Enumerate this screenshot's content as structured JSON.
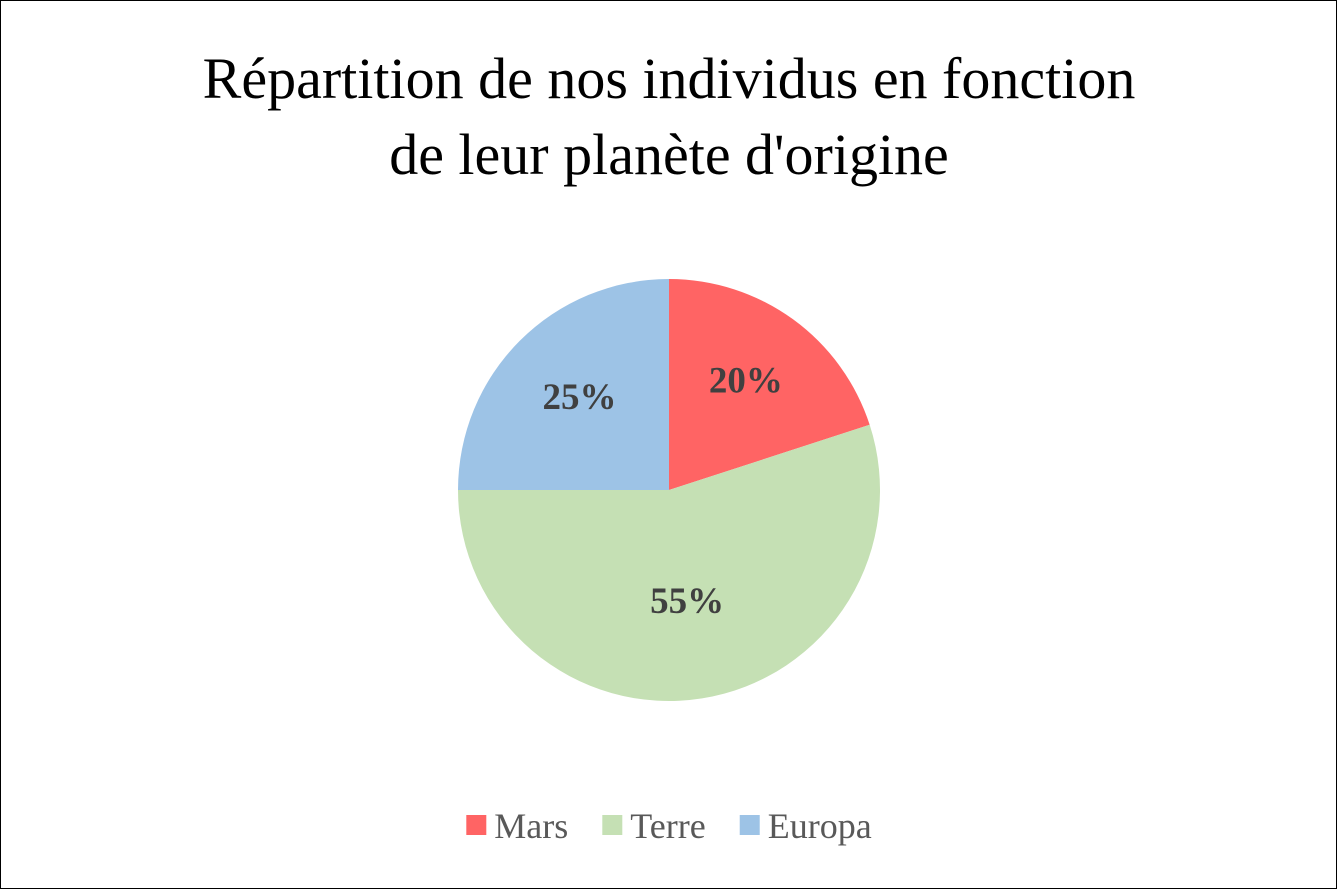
{
  "chart_data": {
    "type": "pie",
    "title_lines": [
      "Répartition de nos individus en fonction",
      "de leur planète d'origine"
    ],
    "categories": [
      "Mars",
      "Terre",
      "Europa"
    ],
    "values": [
      20,
      55,
      25
    ],
    "labels": [
      "20%",
      "55%",
      "25%"
    ],
    "colors": [
      "#ff6464",
      "#c5e0b4",
      "#9dc3e6"
    ],
    "start_angle_deg": 0,
    "direction": "clockwise",
    "legend_position": "bottom"
  }
}
